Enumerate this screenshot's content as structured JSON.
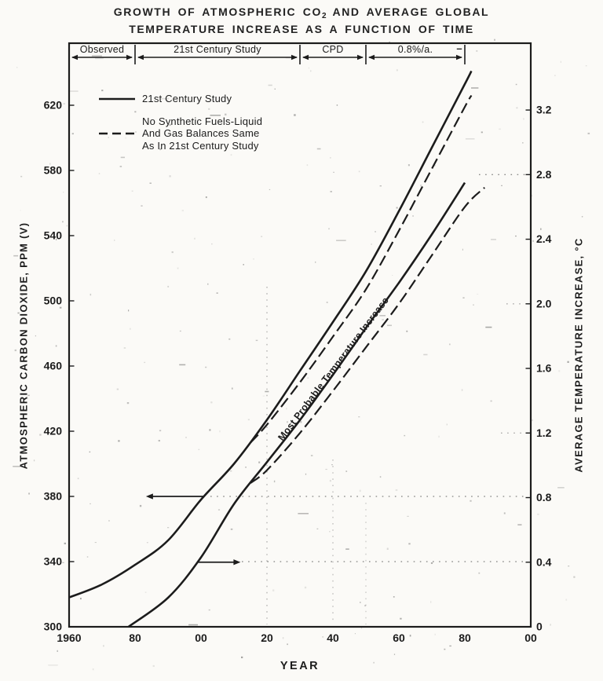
{
  "title": {
    "part1": "GROWTH OF ATMOSPHERIC CO",
    "subscript": "2",
    "part2": " AND AVERAGE GLOBAL",
    "line2": "TEMPERATURE INCREASE AS A FUNCTION OF TIME"
  },
  "band": {
    "segments": [
      {
        "label": "Observed",
        "year_start": 1960,
        "year_end": 1980
      },
      {
        "label": "21st Century Study",
        "year_start": 1980,
        "year_end": 2030
      },
      {
        "label": "CPD",
        "year_start": 2030,
        "year_end": 2050
      },
      {
        "label": "0.8%/a.",
        "year_start": 2050,
        "year_end": 2080
      }
    ],
    "trailing_dash": "–"
  },
  "legend": {
    "items": [
      {
        "style": "solid",
        "label": "21st Century Study"
      },
      {
        "style": "dashed",
        "lines": [
          "No Synthetic Fuels-Liquid",
          "And Gas Balances Same",
          "As In 21st Century Study"
        ]
      }
    ]
  },
  "annotations": {
    "curve_label": "Most Probable Temperature Increase",
    "arrows": [
      {
        "id": "co2-axis-pointer-arrow",
        "axis": "left",
        "value": 380,
        "year_tail": 2001,
        "year_tip": 1983.3,
        "points": "left"
      },
      {
        "id": "temp-axis-pointer-arrow",
        "axis": "right",
        "value": 0.4,
        "year_tail": 1998.8,
        "year_tip": 2012,
        "points": "right"
      }
    ]
  },
  "chart_data": {
    "type": "line",
    "title": "GROWTH OF ATMOSPHERIC CO2 AND AVERAGE GLOBAL TEMPERATURE INCREASE AS A FUNCTION OF TIME",
    "xlabel": "YEAR",
    "x_range": [
      1960,
      2100
    ],
    "x_tick_labels": [
      "1960",
      "80",
      "00",
      "20",
      "40",
      "60",
      "80",
      "00"
    ],
    "x_tick_years": [
      1960,
      1980,
      2000,
      2020,
      2040,
      2060,
      2080,
      2100
    ],
    "grid": false,
    "legend_position": "top-left-inside",
    "y_left": {
      "label": "ATMOSPHERIC CARBON DIOXIDE, PPM (V)",
      "range": [
        300,
        658
      ],
      "ticks": [
        "300",
        "340",
        "380",
        "420",
        "460",
        "500",
        "540",
        "580",
        "620"
      ]
    },
    "y_right": {
      "label": "AVERAGE TEMPERATURE INCREASE, °C",
      "range": [
        0,
        3.6
      ],
      "ticks": [
        "0",
        "0.4",
        "0.8",
        "1.2",
        "1.6",
        "2.0",
        "2.4",
        "2.8",
        "3.2"
      ]
    },
    "series": [
      {
        "id": "co2-21st-century-curve",
        "name": "Atmospheric CO2 — 21st Century Study",
        "axis": "left",
        "style": "solid",
        "points": [
          [
            1960,
            318
          ],
          [
            1970,
            326
          ],
          [
            1980,
            338
          ],
          [
            1990,
            353
          ],
          [
            2000,
            378
          ],
          [
            2010,
            400
          ],
          [
            2020,
            427
          ],
          [
            2030,
            457
          ],
          [
            2040,
            487
          ],
          [
            2050,
            518
          ],
          [
            2060,
            555
          ],
          [
            2070,
            594
          ],
          [
            2080,
            633
          ],
          [
            2082,
            641
          ]
        ]
      },
      {
        "id": "co2-no-synfuels-curve",
        "name": "Atmospheric CO2 — No Synthetic Fuels, Liquid And Gas Balances Same As In 21st Century Study",
        "axis": "left",
        "style": "dashed",
        "points": [
          [
            2015,
            413
          ],
          [
            2020,
            424
          ],
          [
            2030,
            450
          ],
          [
            2040,
            478
          ],
          [
            2050,
            507
          ],
          [
            2060,
            543
          ],
          [
            2070,
            581
          ],
          [
            2080,
            619
          ],
          [
            2082,
            626
          ]
        ]
      },
      {
        "id": "temp-most-probable-curve",
        "name": "Most Probable Temperature Increase — 21st Century Study",
        "axis": "right",
        "style": "solid",
        "points": [
          [
            1978,
            0
          ],
          [
            1990,
            0.18
          ],
          [
            2000,
            0.43
          ],
          [
            2010,
            0.76
          ],
          [
            2020,
            1.02
          ],
          [
            2030,
            1.28
          ],
          [
            2040,
            1.56
          ],
          [
            2050,
            1.85
          ],
          [
            2060,
            2.13
          ],
          [
            2070,
            2.43
          ],
          [
            2080,
            2.75
          ]
        ]
      },
      {
        "id": "temp-no-synfuels-curve",
        "name": "Temperature Increase — No Synthetic Fuels, Liquid And Gas Balances Same As In 21st Century Study",
        "axis": "right",
        "style": "dashed",
        "points": [
          [
            2015,
            0.89
          ],
          [
            2020,
            0.97
          ],
          [
            2030,
            1.2
          ],
          [
            2040,
            1.46
          ],
          [
            2050,
            1.73
          ],
          [
            2060,
            2.0
          ],
          [
            2070,
            2.3
          ],
          [
            2080,
            2.6
          ],
          [
            2086,
            2.72
          ]
        ]
      }
    ]
  },
  "colors": {
    "ink": "#1c1c1c",
    "paper": "#fbfaf7"
  }
}
